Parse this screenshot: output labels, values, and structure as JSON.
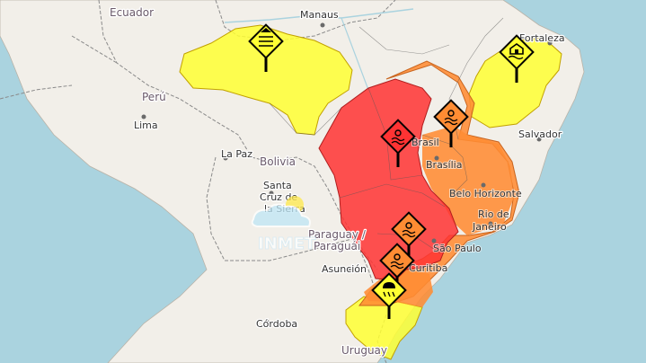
{
  "colors": {
    "ocean": "#aad3df",
    "land": "#f2efe9",
    "alert_yellow": "#ffff33",
    "alert_orange": "#ff8c33",
    "alert_red": "#ff3333",
    "alert_stroke": "#c2a100",
    "sign_black": "#000000"
  },
  "cities": {
    "manaus": "Manaus",
    "fortaleza": "Fortaleza",
    "salvador": "Salvador",
    "brasil": "Brasil",
    "brasilia": "Brasília",
    "belo_horizonte": "Belo Horizonte",
    "rio_line1": "Rio de",
    "rio_line2": "Janeiro",
    "sao_paulo": "São Paulo",
    "curitiba": "Curitiba",
    "la_paz": "La Paz",
    "santa_cruz_line1": "Santa",
    "santa_cruz_line2": "Cruz de",
    "santa_cruz_line3": "la Sierra",
    "asuncion": "Asunción",
    "cordoba": "Córdoba",
    "lima": "Lima"
  },
  "countries": {
    "ecuador": "Ecuador",
    "peru": "Perú",
    "bolivia": "Bolivia",
    "paraguay_line1": "Paraguay /",
    "paraguay_line2": "Paraguái",
    "uruguay": "Uruguay"
  },
  "watermark": "INMET",
  "icons": {
    "north": "wind-warning-icon",
    "northeast": "house-flood-warning-icon",
    "center": "heat-warning-icon",
    "goias": "heat-warning-icon",
    "saopaulo": "heat-warning-icon",
    "parana": "heat-warning-icon",
    "south": "storm-warning-icon"
  }
}
